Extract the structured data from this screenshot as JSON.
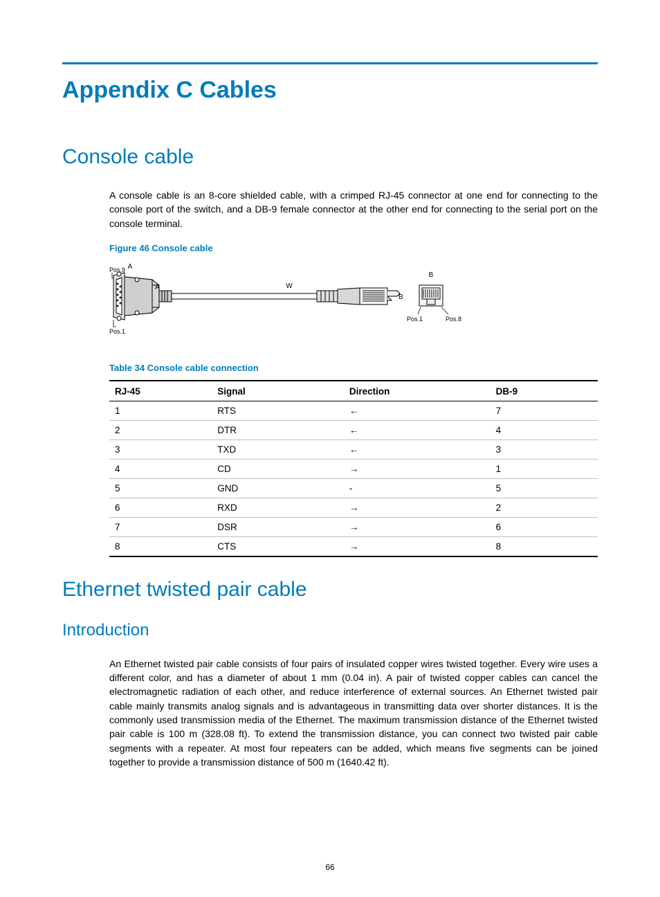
{
  "colors": {
    "accent": "#007cba",
    "text": "#000000",
    "rule_gray": "#bfbfbf",
    "figure_gray": "#9e9e9e",
    "figure_light": "#d0d0d0"
  },
  "page_number": "66",
  "appendix_title": "Appendix C Cables",
  "section1": {
    "title": "Console cable",
    "paragraph": "A console cable is an 8-core shielded cable, with a crimped RJ-45 connector at one end for connecting to the console port of the switch, and a DB-9 female connector at the other end for connecting to the serial port on the console terminal.",
    "figure_caption": "Figure 46 Console cable",
    "figure_labels": {
      "A_top": "A",
      "pos9": "Pos.9",
      "A_side": "A",
      "pos1_left": "Pos.1",
      "W": "W",
      "B_side": "B",
      "B_top": "B",
      "pos1_right": "Pos.1",
      "pos8": "Pos.8"
    },
    "table_caption": "Table 34 Console cable connection",
    "table": {
      "columns": [
        "RJ-45",
        "Signal",
        "Direction",
        "DB-9"
      ],
      "col_widths": [
        "21%",
        "27%",
        "30%",
        "22%"
      ],
      "rows": [
        [
          "1",
          "RTS",
          "←",
          "7"
        ],
        [
          "2",
          "DTR",
          "←",
          "4"
        ],
        [
          "3",
          "TXD",
          "←",
          "3"
        ],
        [
          "4",
          "CD",
          "→",
          "1"
        ],
        [
          "5",
          "GND",
          "-",
          "5"
        ],
        [
          "6",
          "RXD",
          "→",
          "2"
        ],
        [
          "7",
          "DSR",
          "→",
          "6"
        ],
        [
          "8",
          "CTS",
          "→",
          "8"
        ]
      ]
    }
  },
  "section2": {
    "title": "Ethernet twisted pair cable",
    "sub_title": "Introduction",
    "paragraph": "An Ethernet twisted pair cable consists of four pairs of insulated copper wires twisted together. Every wire uses a different color, and has a diameter of about 1 mm (0.04 in). A pair of twisted copper cables can cancel the electromagnetic radiation of each other, and reduce interference of external sources. An Ethernet twisted pair cable mainly transmits analog signals and is advantageous in transmitting data over shorter distances. It is the commonly used transmission media of the Ethernet. The maximum transmission distance of the Ethernet twisted pair cable is 100 m (328.08 ft). To extend the transmission distance, you can connect two twisted pair cable segments with a repeater. At most four repeaters can be added, which means five segments can be joined together to provide a transmission distance of 500 m (1640.42 ft)."
  }
}
